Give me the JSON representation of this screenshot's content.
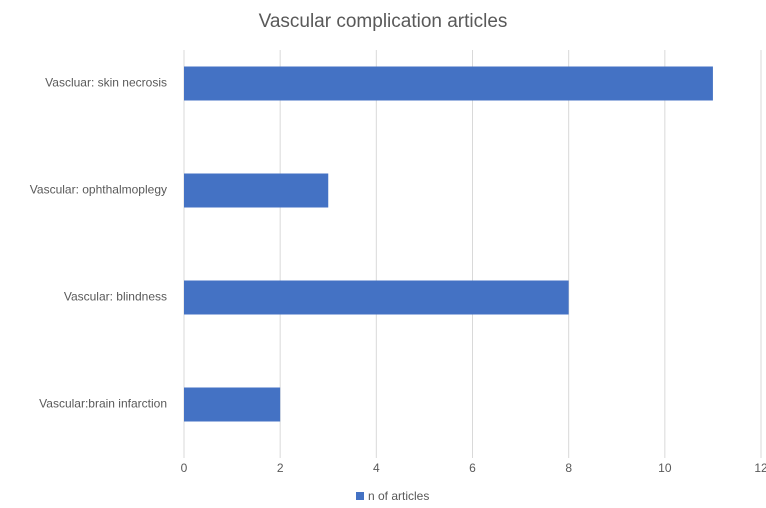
{
  "chart_data": {
    "type": "hbar",
    "title": "Vascular complication articles",
    "categories": [
      "Vascluar: skin necrosis",
      "Vascular: ophthalmoplegy",
      "Vascular: blindness",
      "Vascular:brain infarction"
    ],
    "series": [
      {
        "name": "n of articles",
        "color": "#4472c4",
        "values": [
          11,
          3,
          8,
          2
        ]
      }
    ],
    "xlim": [
      0,
      12
    ],
    "xticks": [
      0,
      2,
      4,
      6,
      8,
      10,
      12
    ],
    "grid": true,
    "legend": "bottom"
  }
}
